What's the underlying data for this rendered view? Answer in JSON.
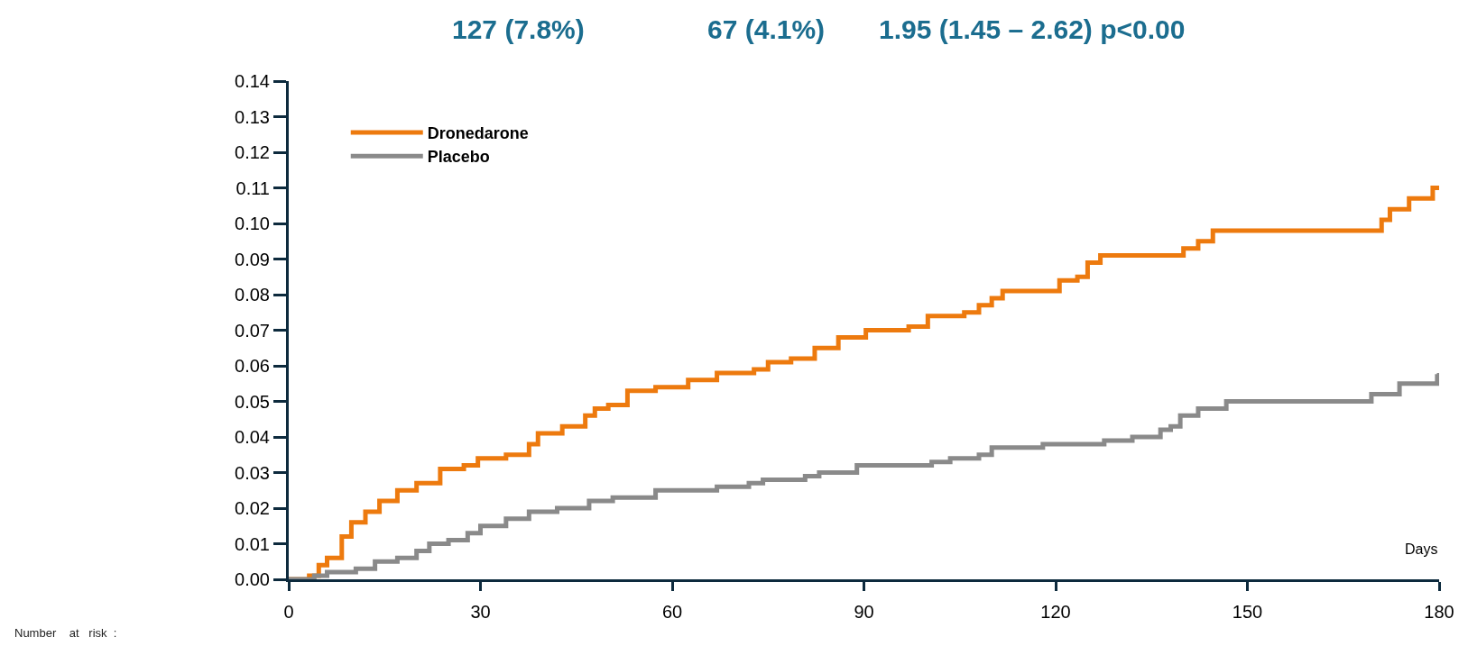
{
  "chart_data": {
    "type": "step",
    "xlabel": "Days",
    "annotations": [
      "127 (7.8%)",
      "67 (4.1%)",
      "1.95 (1.45 – 2.62) p<0.00",
      "Number    at   risk  :"
    ],
    "series": [
      {
        "name": "Dronedarone",
        "color": "#ed7a0e",
        "x": [
          0,
          3.2,
          4.7,
          6,
          8.3,
          9.8,
          12,
          14.2,
          17,
          20,
          23.7,
          27.4,
          29.6,
          34,
          37.6,
          39,
          42.8,
          46.4,
          47.9,
          50,
          53,
          57.4,
          62.5,
          67,
          72.8,
          75,
          78.6,
          82.3,
          86,
          90.3,
          97,
          100,
          105.7,
          108,
          110,
          111.7,
          120.6,
          123.4,
          125,
          127,
          140,
          142.3,
          144.6,
          171,
          172.3,
          175.3,
          179,
          180
        ],
        "values": [
          0,
          0.001,
          0.004,
          0.006,
          0.012,
          0.016,
          0.019,
          0.022,
          0.025,
          0.027,
          0.031,
          0.032,
          0.034,
          0.035,
          0.038,
          0.041,
          0.043,
          0.046,
          0.048,
          0.049,
          0.053,
          0.054,
          0.056,
          0.058,
          0.059,
          0.061,
          0.062,
          0.065,
          0.068,
          0.07,
          0.071,
          0.074,
          0.075,
          0.077,
          0.079,
          0.081,
          0.084,
          0.085,
          0.089,
          0.091,
          0.093,
          0.095,
          0.098,
          0.101,
          0.104,
          0.107,
          0.11,
          0.11
        ]
      },
      {
        "name": "Placebo",
        "color": "#8a8a8a",
        "x": [
          0,
          4,
          6,
          10.5,
          13.5,
          17,
          20,
          22,
          25,
          28,
          30,
          34,
          37.6,
          42,
          47,
          50.7,
          57.4,
          67,
          72,
          74.2,
          80.8,
          83,
          88.9,
          100.6,
          103.5,
          108,
          110,
          118,
          127.6,
          132,
          136.4,
          138,
          139.5,
          142.3,
          146.7,
          169.4,
          173.8,
          179.7,
          180
        ],
        "values": [
          0,
          0.001,
          0.002,
          0.003,
          0.005,
          0.006,
          0.008,
          0.01,
          0.011,
          0.013,
          0.015,
          0.017,
          0.019,
          0.02,
          0.022,
          0.023,
          0.025,
          0.026,
          0.027,
          0.028,
          0.029,
          0.03,
          0.032,
          0.033,
          0.034,
          0.035,
          0.037,
          0.038,
          0.039,
          0.04,
          0.042,
          0.043,
          0.046,
          0.048,
          0.05,
          0.052,
          0.055,
          0.057,
          0.058
        ]
      }
    ],
    "xlim": [
      0,
      180
    ],
    "xticks": [
      0,
      30,
      60,
      90,
      120,
      150,
      180
    ],
    "ylim": [
      0,
      0.14
    ],
    "yticks": [
      {
        "value": 0,
        "label": "0.00"
      },
      {
        "value": 0.01,
        "label": "0.01"
      },
      {
        "value": 0.02,
        "label": "0.02"
      },
      {
        "value": 0.03,
        "label": "0.03"
      },
      {
        "value": 0.04,
        "label": "0.04"
      },
      {
        "value": 0.05,
        "label": "0.05"
      },
      {
        "value": 0.06,
        "label": "0.06"
      },
      {
        "value": 0.07,
        "label": "0.07"
      },
      {
        "value": 0.08,
        "label": "0.08"
      },
      {
        "value": 0.09,
        "label": "0.09"
      },
      {
        "value": 0.1,
        "label": "0.10"
      },
      {
        "value": 0.11,
        "label": "0.11"
      },
      {
        "value": 0.12,
        "label": "0.12"
      },
      {
        "value": 0.13,
        "label": "0.13"
      },
      {
        "value": 0.14,
        "label": "0.14"
      }
    ],
    "grid": false,
    "legend": "top left",
    "marker": "none",
    "line_style": "solid"
  }
}
